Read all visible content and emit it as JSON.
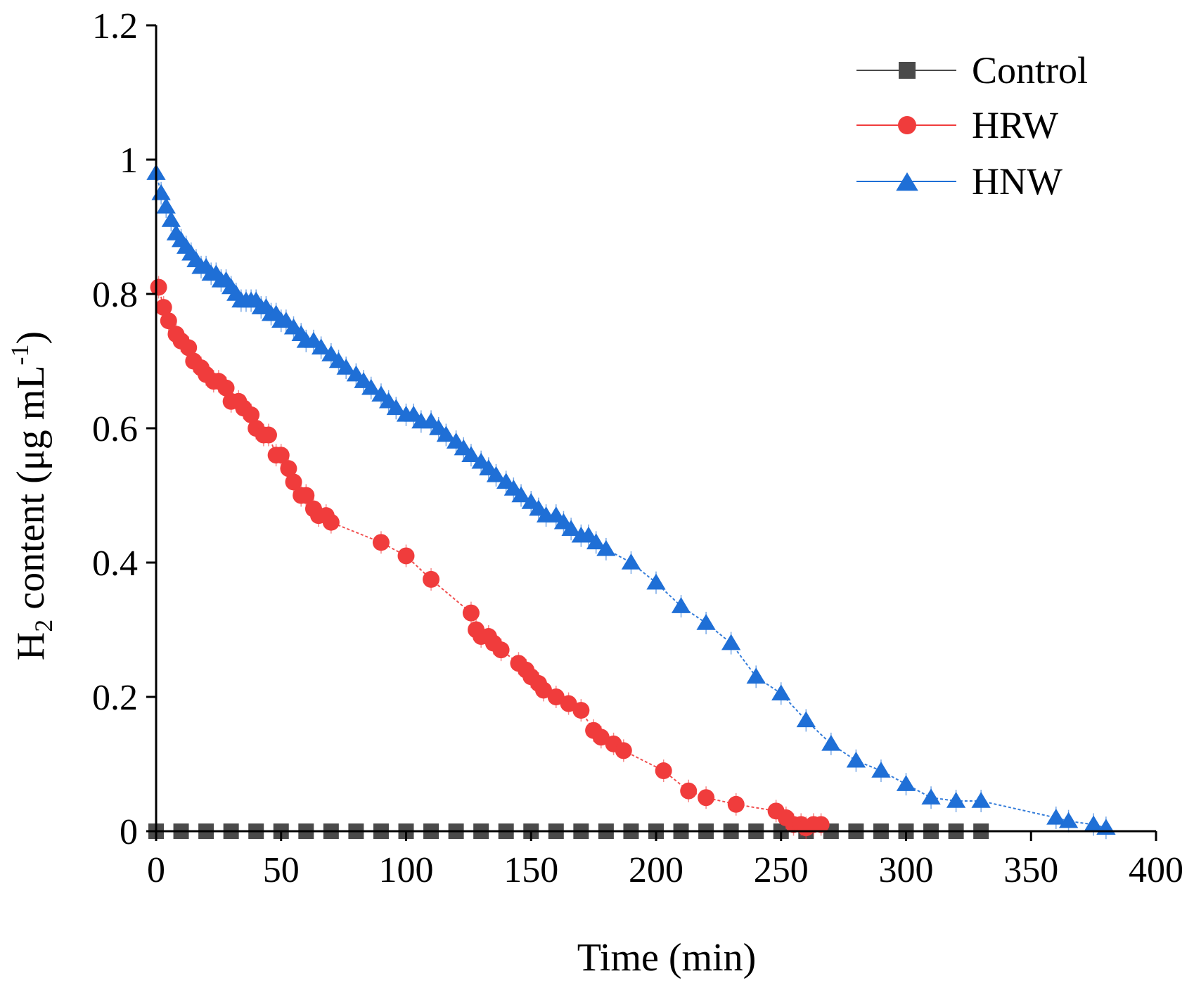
{
  "chart_data": {
    "type": "line",
    "title": "",
    "xlabel": "Time (min)",
    "ylabel_main": "H",
    "ylabel_sub": "2",
    "ylabel_rest": " content (μg mL",
    "ylabel_sup": "-1",
    "ylabel_close": ")",
    "xlim": [
      0,
      400
    ],
    "ylim": [
      0,
      1.2
    ],
    "xticks": [
      0,
      50,
      100,
      150,
      200,
      250,
      300,
      350,
      400
    ],
    "xtick_labels": [
      "0",
      "50",
      "100",
      "150",
      "200",
      "250",
      "300",
      "350",
      "400"
    ],
    "yticks": [
      0,
      0.2,
      0.4,
      0.6,
      0.8,
      1.0,
      1.2
    ],
    "ytick_labels": [
      "0",
      "0.2",
      "0.4",
      "0.6",
      "0.8",
      "1",
      "1.2"
    ],
    "legend_position": "top-right",
    "series": [
      {
        "name": "Control",
        "color": "#4a4a4a",
        "marker": "square",
        "x": [
          0,
          10,
          20,
          30,
          40,
          50,
          60,
          70,
          80,
          90,
          100,
          110,
          120,
          130,
          140,
          150,
          160,
          170,
          180,
          190,
          200,
          210,
          220,
          230,
          240,
          250,
          260,
          270,
          280,
          290,
          300,
          310,
          320,
          330
        ],
        "y": [
          0,
          0,
          0,
          0,
          0,
          0,
          0,
          0,
          0,
          0,
          0,
          0,
          0,
          0,
          0,
          0,
          0,
          0,
          0,
          0,
          0,
          0,
          0,
          0,
          0,
          0,
          0,
          0,
          0,
          0,
          0,
          0,
          0,
          0
        ]
      },
      {
        "name": "HRW",
        "color": "#f03c3c",
        "marker": "circle",
        "x": [
          1,
          3,
          5,
          8,
          10,
          13,
          15,
          18,
          20,
          23,
          25,
          28,
          30,
          33,
          35,
          38,
          40,
          43,
          45,
          48,
          50,
          53,
          55,
          58,
          60,
          63,
          65,
          68,
          70,
          90,
          100,
          110,
          126,
          128,
          130,
          133,
          135,
          138,
          145,
          148,
          150,
          153,
          155,
          160,
          165,
          170,
          175,
          178,
          183,
          187,
          203,
          213,
          220,
          232,
          248,
          252,
          255,
          258,
          260,
          263,
          266
        ],
        "y": [
          0.81,
          0.78,
          0.76,
          0.74,
          0.73,
          0.72,
          0.7,
          0.69,
          0.68,
          0.67,
          0.67,
          0.66,
          0.64,
          0.64,
          0.63,
          0.62,
          0.6,
          0.59,
          0.59,
          0.56,
          0.56,
          0.54,
          0.52,
          0.5,
          0.5,
          0.48,
          0.47,
          0.47,
          0.46,
          0.43,
          0.41,
          0.375,
          0.325,
          0.3,
          0.29,
          0.29,
          0.28,
          0.27,
          0.25,
          0.24,
          0.23,
          0.22,
          0.21,
          0.2,
          0.19,
          0.18,
          0.15,
          0.14,
          0.13,
          0.12,
          0.09,
          0.06,
          0.05,
          0.04,
          0.03,
          0.02,
          0.01,
          0.01,
          0.005,
          0.01,
          0.01
        ]
      },
      {
        "name": "HNW",
        "color": "#1f6fd6",
        "marker": "triangle",
        "x": [
          0,
          2,
          4,
          6,
          8,
          10,
          12,
          14,
          16,
          18,
          20,
          22,
          24,
          26,
          28,
          30,
          32,
          34,
          36,
          38,
          40,
          42,
          44,
          46,
          48,
          50,
          52,
          55,
          58,
          60,
          63,
          66,
          70,
          73,
          76,
          80,
          83,
          86,
          90,
          93,
          96,
          100,
          103,
          106,
          110,
          113,
          116,
          120,
          123,
          126,
          130,
          133,
          136,
          140,
          143,
          146,
          150,
          153,
          156,
          160,
          163,
          166,
          170,
          173,
          176,
          180,
          190,
          200,
          210,
          220,
          230,
          240,
          250,
          260,
          270,
          280,
          290,
          300,
          310,
          320,
          330,
          360,
          365,
          375,
          380
        ],
        "y": [
          0.98,
          0.95,
          0.93,
          0.91,
          0.89,
          0.88,
          0.87,
          0.86,
          0.85,
          0.84,
          0.84,
          0.83,
          0.83,
          0.82,
          0.82,
          0.81,
          0.8,
          0.79,
          0.79,
          0.79,
          0.79,
          0.78,
          0.78,
          0.77,
          0.77,
          0.76,
          0.76,
          0.75,
          0.74,
          0.73,
          0.73,
          0.72,
          0.71,
          0.7,
          0.69,
          0.68,
          0.67,
          0.66,
          0.65,
          0.64,
          0.63,
          0.62,
          0.62,
          0.61,
          0.61,
          0.6,
          0.59,
          0.58,
          0.57,
          0.56,
          0.55,
          0.54,
          0.53,
          0.52,
          0.51,
          0.5,
          0.49,
          0.48,
          0.47,
          0.47,
          0.46,
          0.45,
          0.44,
          0.44,
          0.43,
          0.42,
          0.4,
          0.37,
          0.335,
          0.31,
          0.28,
          0.23,
          0.205,
          0.165,
          0.13,
          0.105,
          0.09,
          0.07,
          0.05,
          0.045,
          0.045,
          0.02,
          0.015,
          0.01,
          0.005
        ]
      }
    ]
  }
}
